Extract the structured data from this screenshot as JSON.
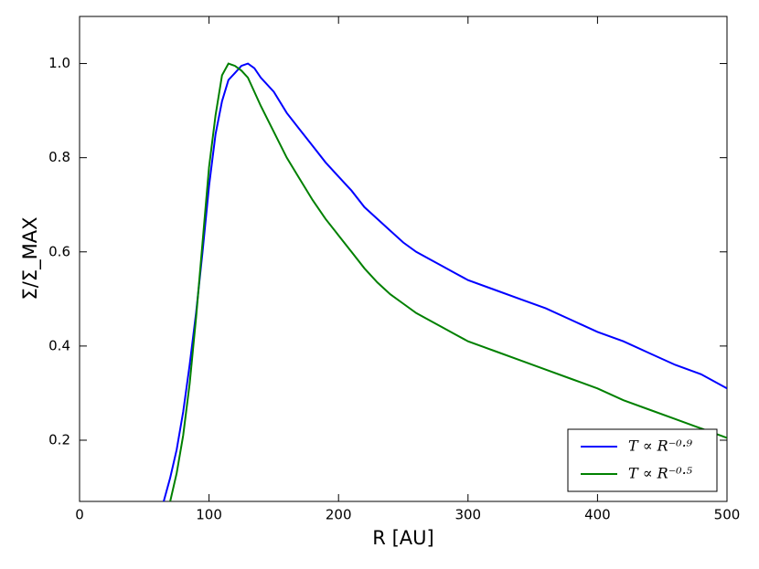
{
  "chart_data": {
    "type": "line",
    "xlabel": "R [AU]",
    "ylabel": "Σ/Σ_MAX",
    "xlim": [
      0,
      500
    ],
    "xticks": [
      0,
      100,
      200,
      300,
      400,
      500
    ],
    "ylim": [
      0.07,
      1.1
    ],
    "yticks": [
      0.2,
      0.4,
      0.6,
      0.8,
      {
        "value": 1,
        "label": "1.0"
      }
    ],
    "legend_position": "lower right",
    "series": [
      {
        "name": "T ∝ R⁻⁰·⁹",
        "color": "#0000ff",
        "x": [
          65,
          70,
          75,
          80,
          85,
          90,
          95,
          100,
          105,
          110,
          115,
          120,
          125,
          130,
          135,
          140,
          150,
          160,
          170,
          180,
          190,
          200,
          210,
          220,
          230,
          240,
          250,
          260,
          270,
          280,
          290,
          300,
          320,
          340,
          360,
          380,
          400,
          420,
          440,
          460,
          480,
          500
        ],
        "values": [
          0.07,
          0.12,
          0.18,
          0.26,
          0.36,
          0.47,
          0.6,
          0.74,
          0.85,
          0.92,
          0.965,
          0.98,
          0.995,
          1.0,
          0.99,
          0.97,
          0.94,
          0.895,
          0.86,
          0.825,
          0.79,
          0.76,
          0.73,
          0.695,
          0.67,
          0.645,
          0.62,
          0.6,
          0.585,
          0.57,
          0.555,
          0.54,
          0.52,
          0.5,
          0.48,
          0.455,
          0.43,
          0.41,
          0.385,
          0.36,
          0.34,
          0.31
        ]
      },
      {
        "name": "T ∝ R⁻⁰·⁵",
        "color": "#008000",
        "x": [
          70,
          75,
          80,
          85,
          90,
          95,
          100,
          105,
          110,
          115,
          120,
          125,
          130,
          140,
          150,
          160,
          170,
          180,
          190,
          200,
          210,
          220,
          230,
          240,
          250,
          260,
          270,
          280,
          290,
          300,
          320,
          340,
          360,
          380,
          400,
          420,
          440,
          460,
          480,
          500
        ],
        "values": [
          0.07,
          0.13,
          0.21,
          0.32,
          0.46,
          0.62,
          0.78,
          0.89,
          0.975,
          1.0,
          0.995,
          0.985,
          0.97,
          0.91,
          0.855,
          0.8,
          0.755,
          0.71,
          0.67,
          0.635,
          0.6,
          0.565,
          0.535,
          0.51,
          0.49,
          0.47,
          0.455,
          0.44,
          0.425,
          0.41,
          0.39,
          0.37,
          0.35,
          0.33,
          0.31,
          0.285,
          0.265,
          0.245,
          0.225,
          0.205
        ]
      }
    ]
  }
}
